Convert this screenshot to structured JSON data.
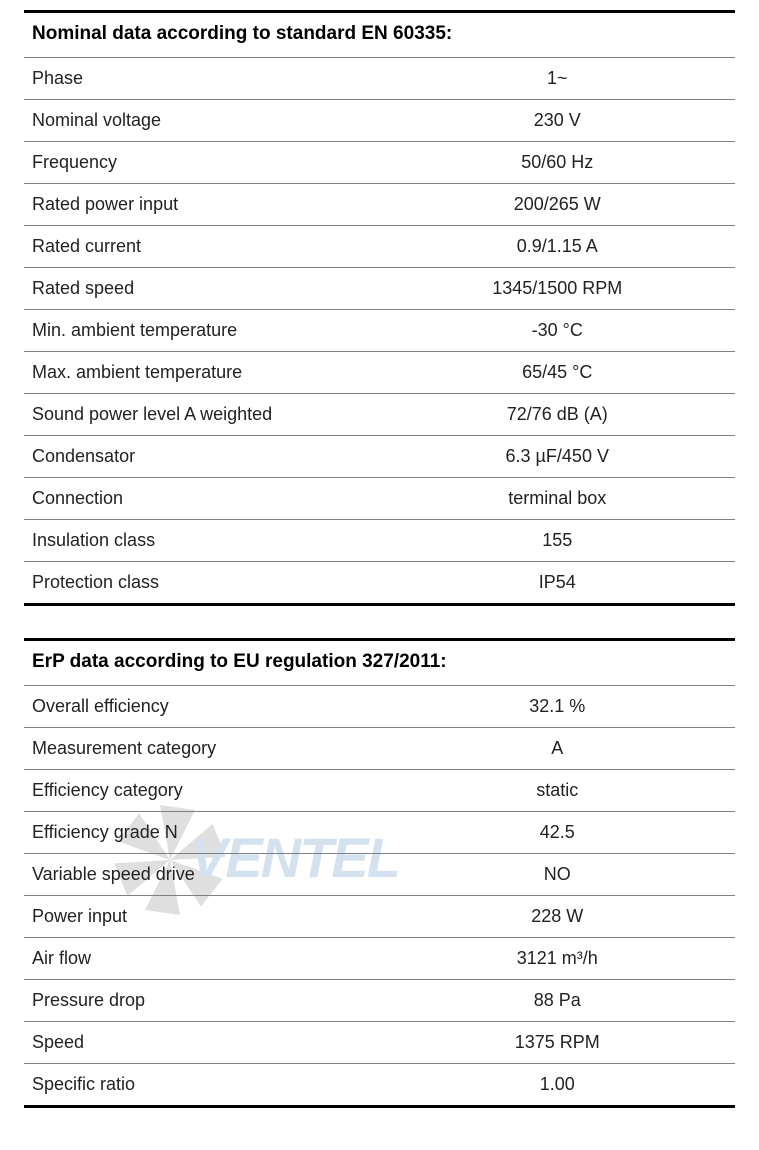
{
  "table1": {
    "title": "Nominal data according to standard EN 60335:",
    "rows": [
      {
        "label": "Phase",
        "value": "1~"
      },
      {
        "label": "Nominal voltage",
        "value": "230 V"
      },
      {
        "label": "Frequency",
        "value": "50/60 Hz"
      },
      {
        "label": "Rated power input",
        "value": "200/265 W"
      },
      {
        "label": "Rated current",
        "value": "0.9/1.15 A"
      },
      {
        "label": "Rated speed",
        "value": "1345/1500 RPM"
      },
      {
        "label": "Min. ambient temperature",
        "value": "-30 °C"
      },
      {
        "label": "Max. ambient temperature",
        "value": "65/45 °C"
      },
      {
        "label": "Sound power level A weighted",
        "value": "72/76 dB (A)"
      },
      {
        "label": "Condensator",
        "value": "6.3 µF/450 V"
      },
      {
        "label": "Connection",
        "value": "terminal box"
      },
      {
        "label": "Insulation class",
        "value": "155"
      },
      {
        "label": "Protection class",
        "value": "IP54"
      }
    ]
  },
  "table2": {
    "title": "ErP data according to EU regulation 327/2011:",
    "rows": [
      {
        "label": "Overall efficiency",
        "value": "32.1 %"
      },
      {
        "label": "Measurement category",
        "value": "A"
      },
      {
        "label": "Efficiency category",
        "value": "static"
      },
      {
        "label": "Efficiency grade N",
        "value": "42.5"
      },
      {
        "label": "Variable speed drive",
        "value": "NO"
      },
      {
        "label": "Power input",
        "value": "228 W"
      },
      {
        "label": "Air flow",
        "value": "3121 m³/h"
      },
      {
        "label": "Pressure drop",
        "value": "88 Pa"
      },
      {
        "label": "Speed",
        "value": "1375 RPM"
      },
      {
        "label": "Specific ratio",
        "value": "1.00"
      }
    ]
  },
  "watermark": {
    "text": "VENTEL",
    "fan_color": "#555555",
    "text_color": "#1565a8"
  },
  "styling": {
    "background_color": "#ffffff",
    "border_color_thick": "#000000",
    "border_color_thin": "#808080",
    "text_color": "#222222",
    "header_fontsize": 19,
    "row_fontsize": 18,
    "label_column_width_pct": 50,
    "value_column_width_pct": 50,
    "value_align": "center"
  }
}
